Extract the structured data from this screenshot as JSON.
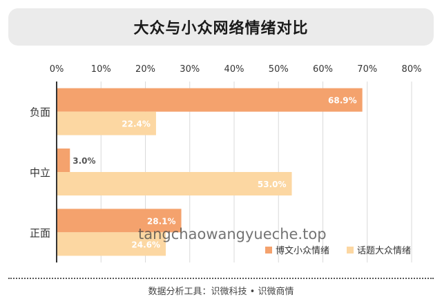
{
  "chart_data": {
    "type": "bar",
    "orientation": "horizontal",
    "title": "大众与小众网络情绪对比",
    "categories": [
      "负面",
      "中立",
      "正面"
    ],
    "series": [
      {
        "name": "博文小众情绪",
        "values": [
          68.9,
          3.0,
          28.1
        ],
        "color": "#f4a26d"
      },
      {
        "name": "话题大众情绪",
        "values": [
          22.4,
          53.0,
          24.6
        ],
        "color": "#fcd7a2"
      }
    ],
    "value_labels": [
      [
        "68.9%",
        "3.0%",
        "28.1%"
      ],
      [
        "22.4%",
        "53.0%",
        "24.6%"
      ]
    ],
    "xlim": [
      0,
      80
    ],
    "x_ticks": [
      "0%",
      "10%",
      "20%",
      "30%",
      "40%",
      "50%",
      "60%",
      "70%",
      "80%"
    ],
    "grid": true,
    "legend_position": "bottom-right"
  },
  "footer": "数据分析工具：识微科技 • 识微商情",
  "watermark": "tangchaowangyueche.top"
}
